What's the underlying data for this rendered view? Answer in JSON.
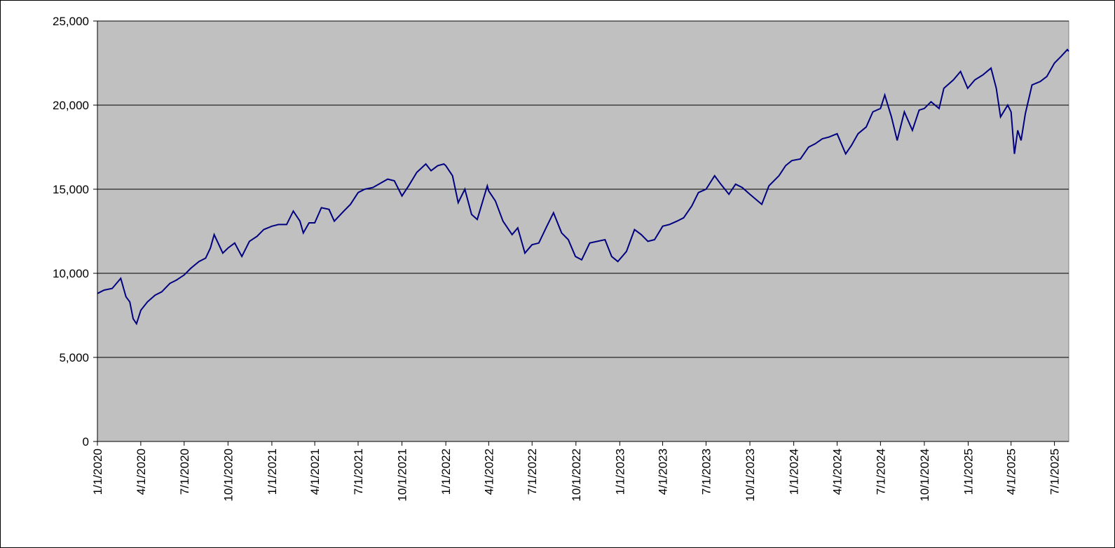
{
  "chart_data": {
    "type": "line",
    "x": [
      "1/1/2020",
      "1/15/2020",
      "2/1/2020",
      "2/19/2020",
      "3/1/2020",
      "3/9/2020",
      "3/16/2020",
      "3/23/2020",
      "4/1/2020",
      "4/15/2020",
      "5/1/2020",
      "5/15/2020",
      "6/1/2020",
      "6/15/2020",
      "7/1/2020",
      "7/15/2020",
      "8/1/2020",
      "8/15/2020",
      "8/25/2020",
      "9/2/2020",
      "9/20/2020",
      "10/1/2020",
      "10/15/2020",
      "10/30/2020",
      "11/15/2020",
      "12/1/2020",
      "12/15/2020",
      "1/1/2021",
      "1/15/2021",
      "2/1/2021",
      "2/15/2021",
      "3/1/2021",
      "3/8/2021",
      "3/20/2021",
      "4/1/2021",
      "4/15/2021",
      "5/1/2021",
      "5/12/2021",
      "6/1/2021",
      "6/15/2021",
      "7/1/2021",
      "7/15/2021",
      "8/1/2021",
      "9/1/2021",
      "9/15/2021",
      "10/1/2021",
      "10/15/2021",
      "11/1/2021",
      "11/20/2021",
      "12/1/2021",
      "12/15/2021",
      "12/28/2021",
      "1/1/2022",
      "1/15/2022",
      "1/27/2022",
      "2/10/2022",
      "2/24/2022",
      "3/8/2022",
      "3/29/2022",
      "4/1/2022",
      "4/15/2022",
      "5/1/2022",
      "5/20/2022",
      "6/1/2022",
      "6/16/2022",
      "7/1/2022",
      "7/15/2022",
      "8/1/2022",
      "8/15/2022",
      "9/1/2022",
      "9/15/2022",
      "9/30/2022",
      "10/13/2022",
      "10/30/2022",
      "11/15/2022",
      "12/1/2022",
      "12/15/2022",
      "12/28/2022",
      "1/15/2023",
      "2/1/2023",
      "2/15/2023",
      "3/1/2023",
      "3/15/2023",
      "4/1/2023",
      "4/15/2023",
      "5/1/2023",
      "5/15/2023",
      "6/1/2023",
      "6/15/2023",
      "7/1/2023",
      "7/19/2023",
      "8/1/2023",
      "8/18/2023",
      "9/1/2023",
      "9/15/2023",
      "10/1/2023",
      "10/26/2023",
      "11/10/2023",
      "12/1/2023",
      "12/15/2023",
      "12/28/2023",
      "1/15/2024",
      "2/1/2024",
      "2/15/2024",
      "3/1/2024",
      "3/15/2024",
      "4/1/2024",
      "4/19/2024",
      "5/1/2024",
      "5/15/2024",
      "6/1/2024",
      "6/15/2024",
      "7/1/2024",
      "7/10/2024",
      "7/24/2024",
      "8/5/2024",
      "8/20/2024",
      "9/6/2024",
      "9/20/2024",
      "10/1/2024",
      "10/15/2024",
      "11/1/2024",
      "11/11/2024",
      "12/1/2024",
      "12/16/2024",
      "12/31/2024",
      "1/15/2025",
      "2/1/2025",
      "2/18/2025",
      "3/1/2025",
      "3/10/2025",
      "3/25/2025",
      "4/1/2025",
      "4/8/2025",
      "4/15/2025",
      "4/22/2025",
      "5/1/2025",
      "5/15/2025",
      "6/1/2025",
      "6/15/2025",
      "7/1/2025",
      "7/15/2025",
      "7/28/2025",
      "7/31/2025"
    ],
    "series": [
      {
        "color": "#000080",
        "values": [
          8800,
          9000,
          9100,
          9700,
          8600,
          8300,
          7300,
          7000,
          7800,
          8300,
          8700,
          8900,
          9400,
          9600,
          9900,
          10300,
          10700,
          10900,
          11500,
          12300,
          11200,
          11500,
          11800,
          11000,
          11900,
          12200,
          12600,
          12800,
          12900,
          12900,
          13700,
          13100,
          12400,
          13000,
          13000,
          13900,
          13800,
          13100,
          13700,
          14100,
          14800,
          15000,
          15100,
          15600,
          15500,
          14600,
          15200,
          16000,
          16500,
          16100,
          16400,
          16500,
          16400,
          15800,
          14200,
          15000,
          13500,
          13200,
          15200,
          14900,
          14300,
          13100,
          12300,
          12700,
          11200,
          11700,
          11800,
          12800,
          13600,
          12400,
          12000,
          11000,
          10800,
          11800,
          11900,
          12000,
          11000,
          10700,
          11300,
          12600,
          12300,
          11900,
          12000,
          12800,
          12900,
          13100,
          13300,
          14000,
          14800,
          15000,
          15800,
          15300,
          14700,
          15300,
          15100,
          14700,
          14100,
          15200,
          15800,
          16400,
          16700,
          16800,
          17500,
          17700,
          18000,
          18100,
          18300,
          17100,
          17600,
          18300,
          18700,
          19600,
          19800,
          20600,
          19300,
          17900,
          19600,
          18500,
          19700,
          19800,
          20200,
          19800,
          21000,
          21500,
          22000,
          21000,
          21500,
          21800,
          22200,
          21000,
          19300,
          20000,
          19600,
          17100,
          18500,
          17900,
          19500,
          21200,
          21400,
          21700,
          22500,
          22900,
          23300,
          23200
        ]
      }
    ],
    "xlim": [
      "1/1/2020",
      "7/31/2025"
    ],
    "xticks": [
      "1/1/2020",
      "4/1/2020",
      "7/1/2020",
      "10/1/2020",
      "1/1/2021",
      "4/1/2021",
      "7/1/2021",
      "10/1/2021",
      "1/1/2022",
      "4/1/2022",
      "7/1/2022",
      "10/1/2022",
      "1/1/2023",
      "4/1/2023",
      "7/1/2023",
      "10/1/2023",
      "1/1/2024",
      "4/1/2024",
      "7/1/2024",
      "10/1/2024",
      "1/1/2025",
      "4/1/2025",
      "7/1/2025"
    ],
    "ylim": [
      0,
      25000
    ],
    "yticks": [
      0,
      {
        "value": 5000,
        "label": "5,000"
      },
      {
        "value": 10000,
        "label": "10,000"
      },
      {
        "value": 15000,
        "label": "15,000"
      },
      {
        "value": 20000,
        "label": "20,000"
      },
      {
        "value": 25000,
        "label": "25,000"
      }
    ],
    "grid": true,
    "plot_background": "#c0c0c0"
  }
}
